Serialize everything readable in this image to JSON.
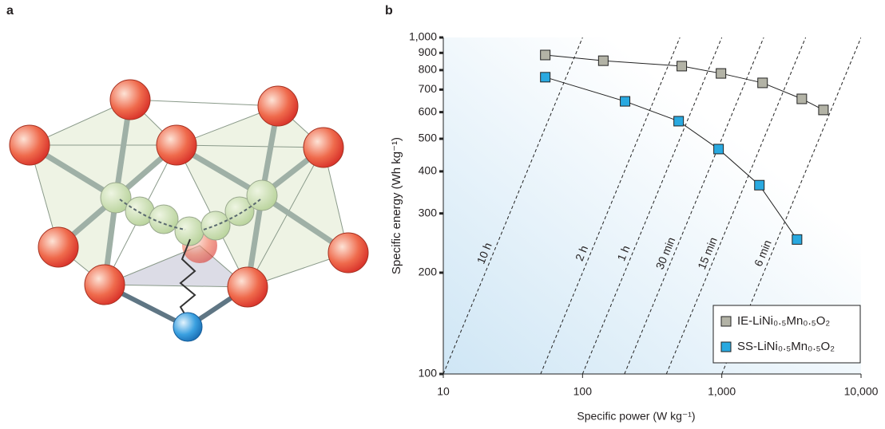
{
  "panel_a": {
    "label": "a"
  },
  "chart_data": {
    "type": "line",
    "panel_label": "b",
    "x_label": "Specific power (W kg⁻¹)",
    "y_label": "Specific energy (Wh kg⁻¹)",
    "xscale": "log",
    "yscale": "log",
    "xlim": [
      10,
      10000
    ],
    "ylim": [
      100,
      1000
    ],
    "xticks": [
      10,
      100,
      {
        "value": 1000,
        "label": "1,000"
      },
      {
        "value": 10000,
        "label": "10,000"
      }
    ],
    "yticks": [
      100,
      200,
      300,
      400,
      500,
      600,
      700,
      800,
      900,
      {
        "value": 1000,
        "label": "1,000"
      }
    ],
    "time_lines": [
      {
        "value": 10,
        "label": "10 h"
      },
      {
        "value": 2,
        "label": "2 h"
      },
      {
        "value": 1,
        "label": "1 h"
      },
      {
        "value": 0.5,
        "label": "30 min"
      },
      {
        "value": 0.25,
        "label": "15 min"
      },
      {
        "value": 0.1,
        "label": "6 min"
      }
    ],
    "legend": "lower right",
    "series": [
      {
        "name": "IE-LiNi₀.₅Mn₀.₅O₂",
        "color": "#b3b3a6",
        "x": [
          54,
          141,
          516,
          987,
          1963,
          3756,
          5370
        ],
        "values": [
          887,
          853,
          822,
          782,
          733,
          657,
          609
        ]
      },
      {
        "name": "SS-LiNi₀.₅Mn₀.₅O₂",
        "color": "#29a9e0",
        "x": [
          54,
          202,
          490,
          948,
          1862,
          3470
        ],
        "values": [
          762,
          646,
          564,
          466,
          364,
          251
        ]
      }
    ]
  }
}
